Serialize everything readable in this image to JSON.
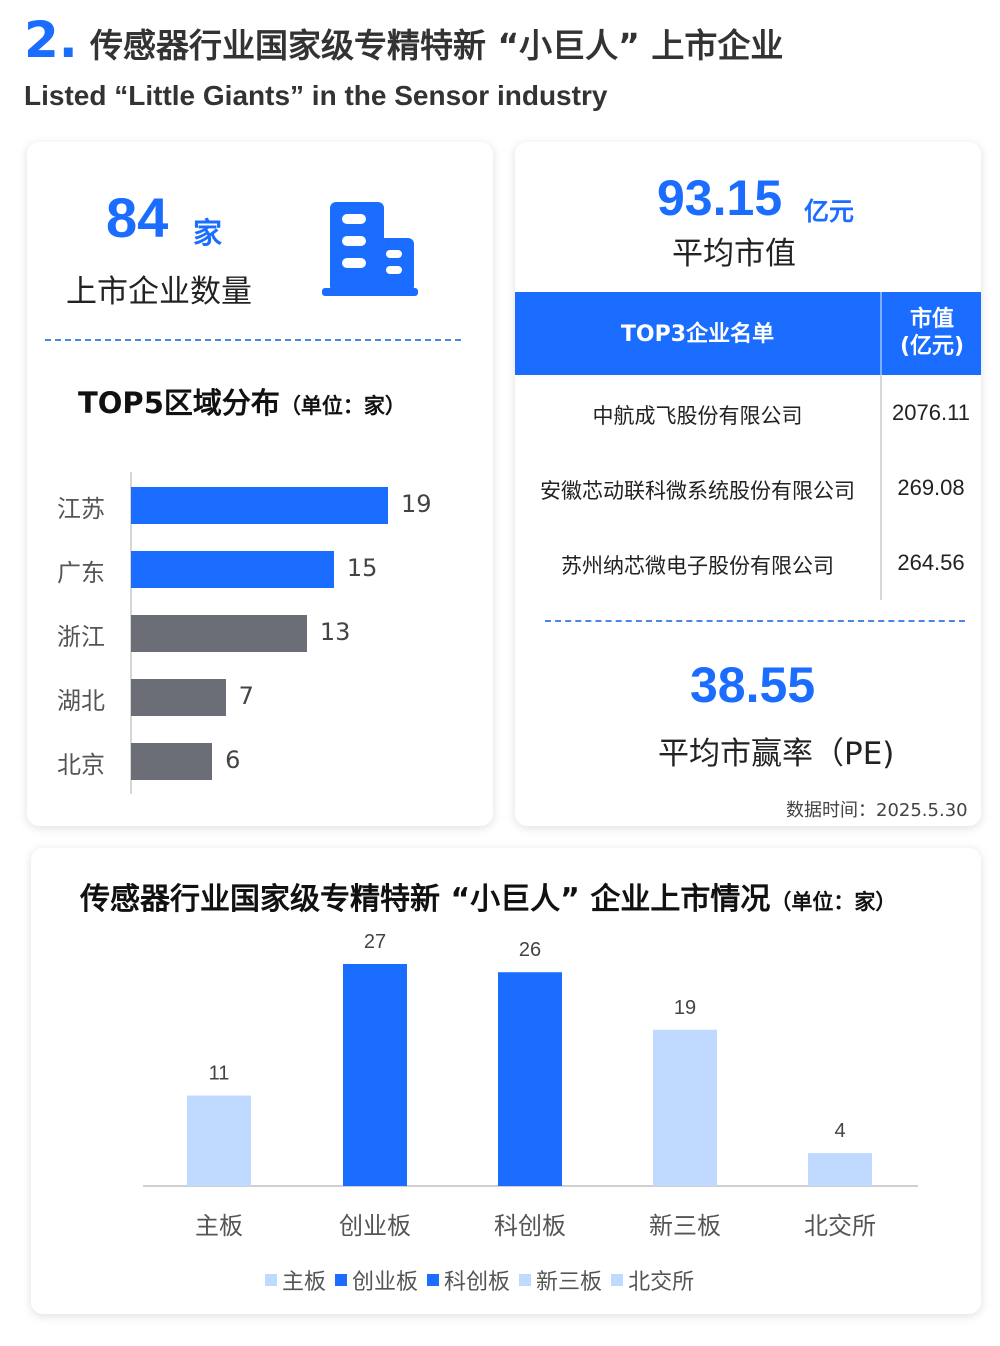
{
  "header": {
    "number": "2.",
    "title_cn": "传感器行业国家级专精特新 “小巨人” 上市企业",
    "title_en": "Listed “Little Giants” in the Sensor industry"
  },
  "left_card": {
    "count_value": "84",
    "count_unit": "家",
    "count_label": "上市企业数量",
    "building_icon": "building-icon",
    "top5_title": "TOP5区域分布",
    "top5_unit": "（单位：家）"
  },
  "right_card": {
    "avg_market_value": "93.15",
    "avg_market_value_unit": "亿元",
    "avg_market_value_label": "平均市值",
    "table_header_name": "TOP3企业名单",
    "table_header_value_line1": "市值",
    "table_header_value_line2": "(亿元)",
    "rows": [
      {
        "name": "中航成飞股份有限公司",
        "value": "2076.11"
      },
      {
        "name": "安徽芯动联科微系统股份有限公司",
        "value": "269.08"
      },
      {
        "name": "苏州纳芯微电子股份有限公司",
        "value": "264.56"
      }
    ],
    "pe_value": "38.55",
    "pe_label": "平均市赢率（PE)",
    "data_date": "数据时间：2025.5.30"
  },
  "colors": {
    "accent": "#1a6dff",
    "gray_bar": "#6b6e76",
    "light_bar": "#bfd9ff"
  },
  "chart_data": [
    {
      "type": "bar",
      "orientation": "horizontal",
      "title": "TOP5区域分布（单位：家）",
      "categories": [
        "江苏",
        "广东",
        "浙江",
        "湖北",
        "北京"
      ],
      "values": [
        19,
        15,
        13,
        7,
        6
      ],
      "colors": [
        "#1a6dff",
        "#1a6dff",
        "#6b6e76",
        "#6b6e76",
        "#6b6e76"
      ],
      "xlim": [
        0,
        19
      ],
      "data_labels": true,
      "grid": false
    },
    {
      "type": "bar",
      "title": "传感器行业国家级专精特新 “小巨人” 企业上市情况",
      "title_unit": "（单位：家）",
      "categories": [
        "主板",
        "创业板",
        "科创板",
        "新三板",
        "北交所"
      ],
      "values": [
        11,
        27,
        26,
        19,
        4
      ],
      "colors": [
        "#bfd9ff",
        "#1a6dff",
        "#1a6dff",
        "#bfd9ff",
        "#bfd9ff"
      ],
      "legend": [
        "主板",
        "创业板",
        "科创板",
        "新三板",
        "北交所"
      ],
      "legend_position": "bottom",
      "ylim": [
        0,
        27
      ],
      "data_labels": true,
      "grid": false
    }
  ]
}
